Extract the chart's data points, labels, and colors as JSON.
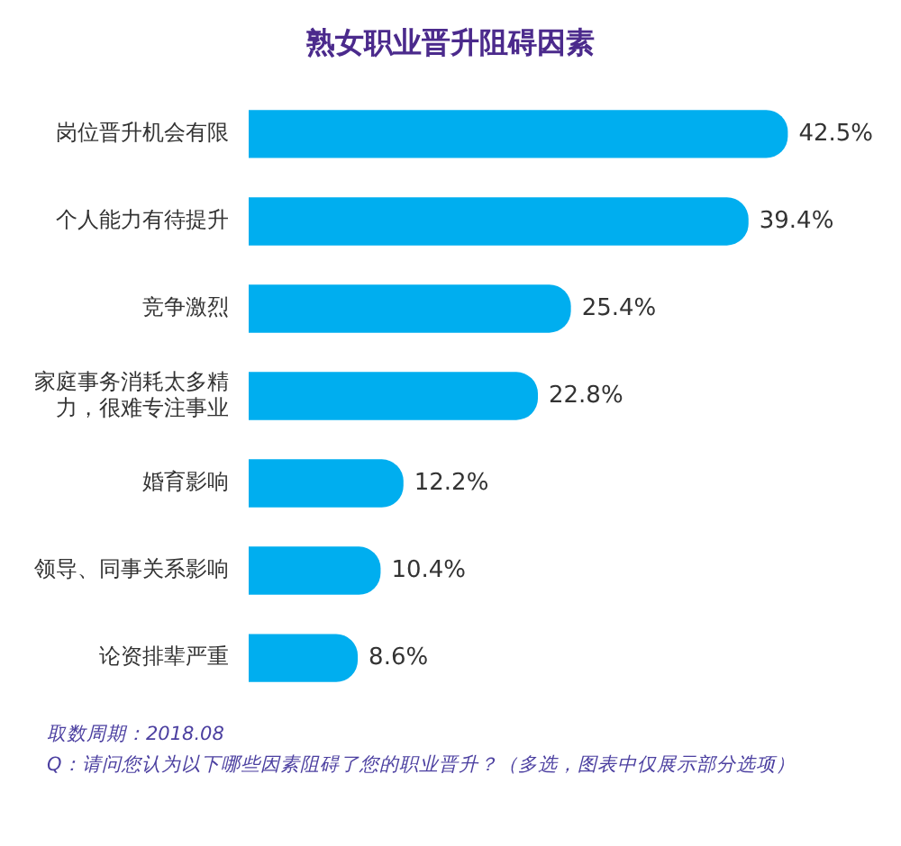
{
  "chart_data": {
    "type": "bar",
    "orientation": "horizontal",
    "title": "熟女职业晋升阻碍因素",
    "categories": [
      "岗位晋升机会有限",
      "个人能力有待提升",
      "竞争激烈",
      "家庭事务消耗太多精力，很难专注事业",
      "婚育影响",
      "领导、同事关系影响",
      "论资排辈严重"
    ],
    "values": [
      42.5,
      39.4,
      25.4,
      22.8,
      12.2,
      10.4,
      8.6
    ],
    "value_labels": [
      "42.5%",
      "39.4%",
      "25.4%",
      "22.8%",
      "12.2%",
      "10.4%",
      "8.6%"
    ],
    "color": "#00aeef",
    "legend": false,
    "annotations": [
      "取数周期：2018.08",
      "Q：请问您认为以下哪些因素阻碍了您的职业晋升？（多选，图表中仅展示部分选项）"
    ]
  }
}
